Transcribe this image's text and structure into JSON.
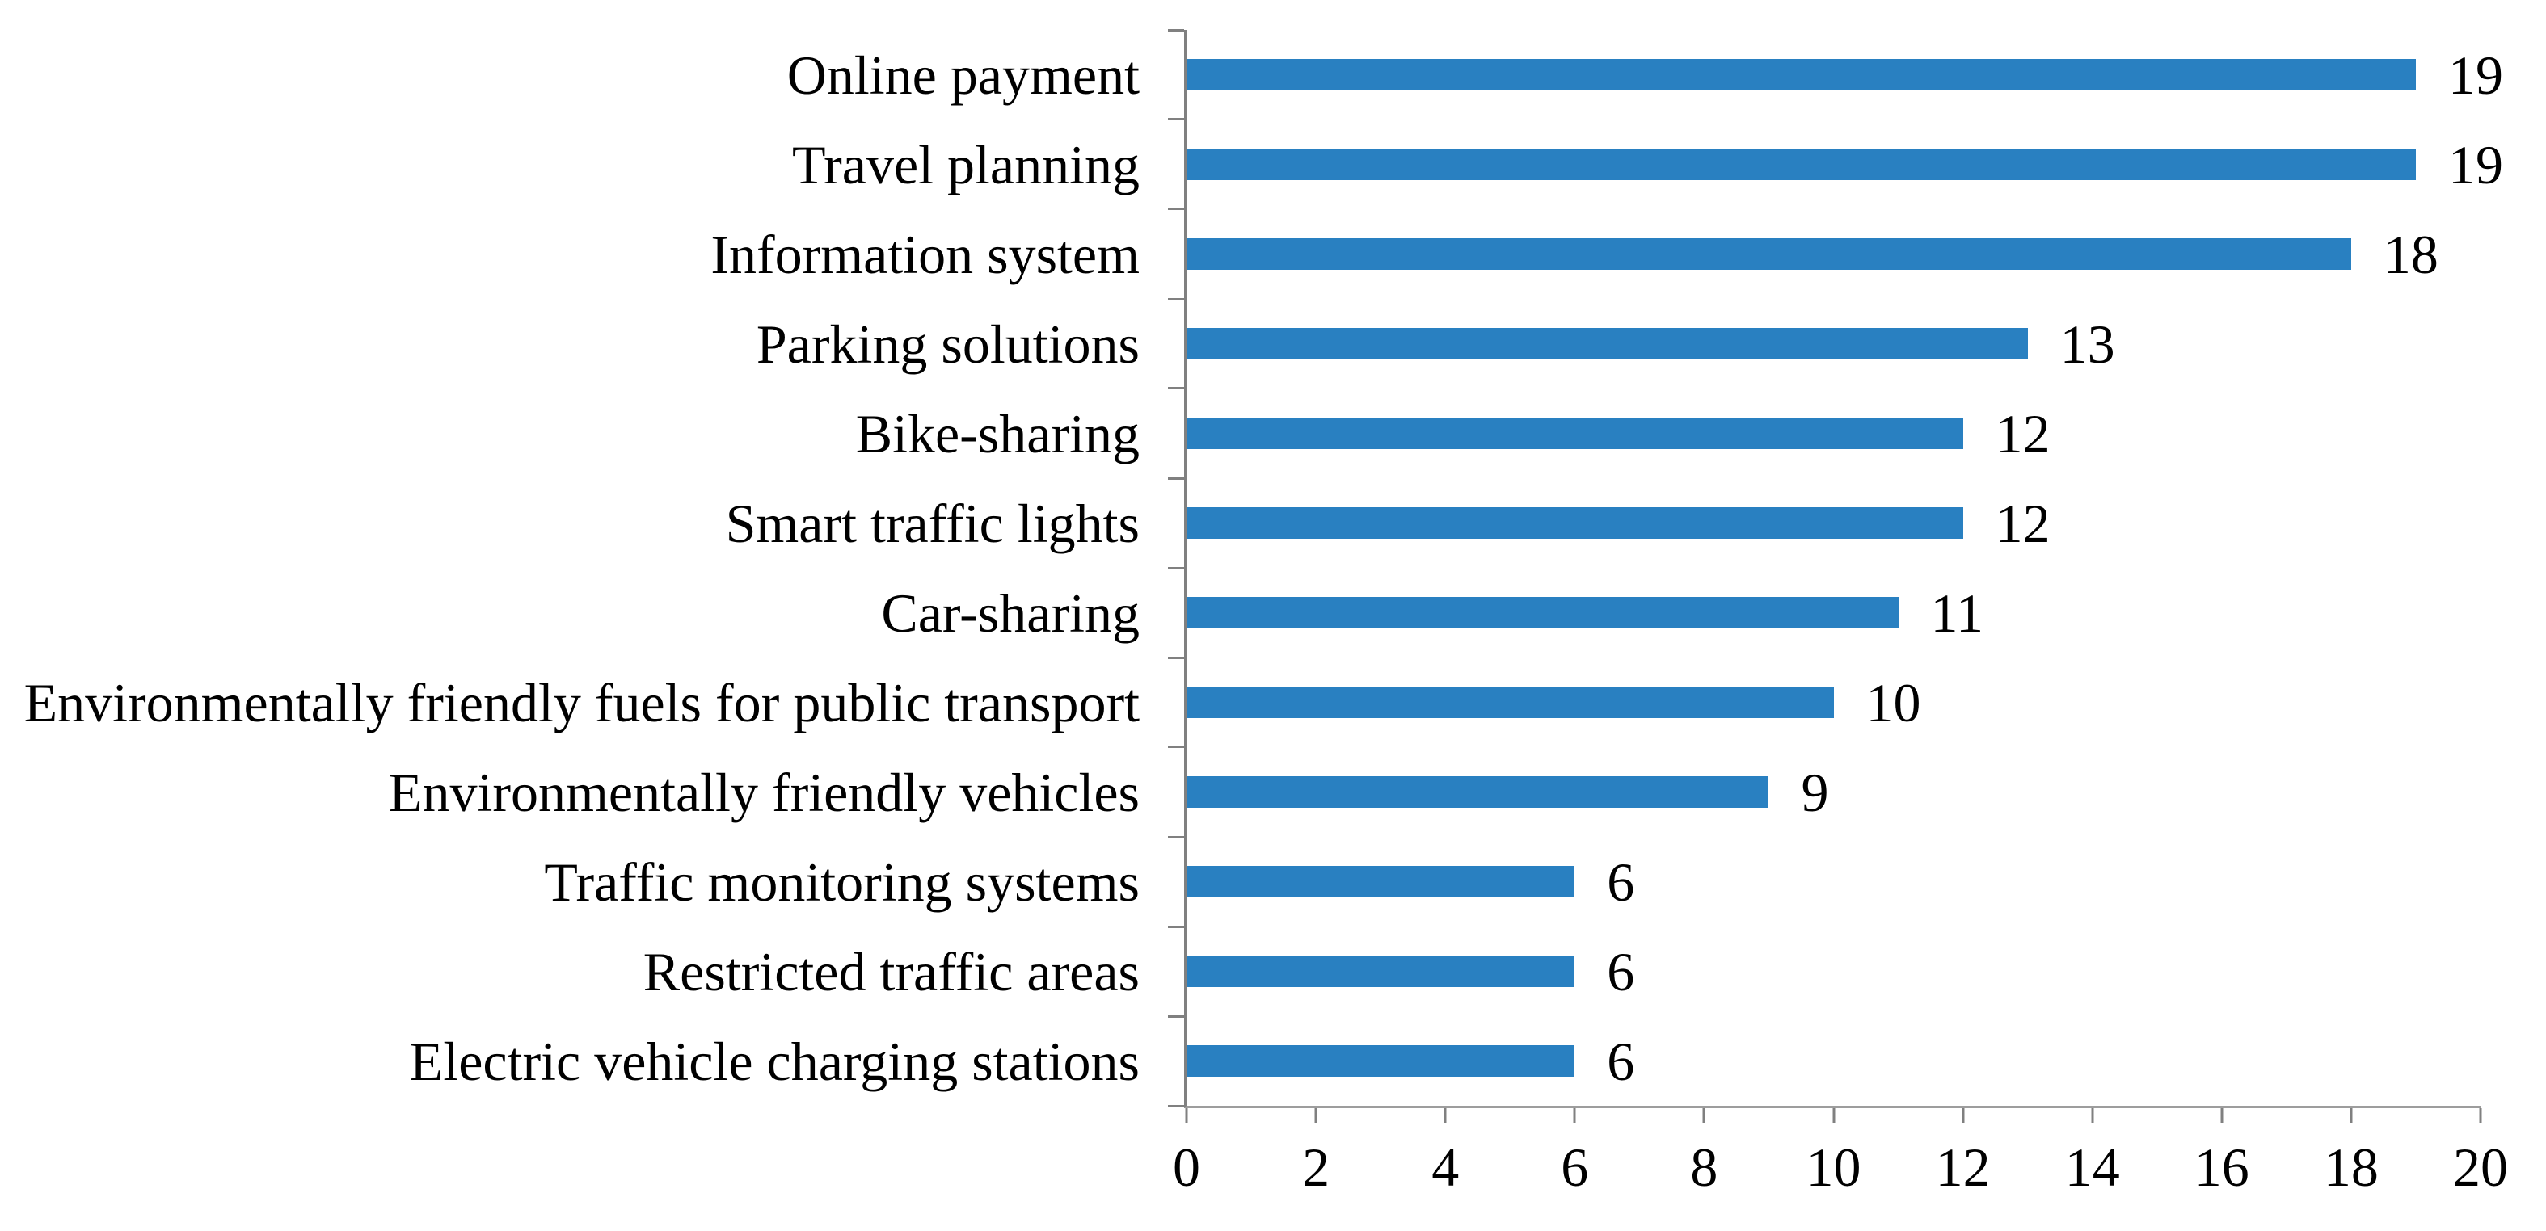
{
  "chart_data": {
    "type": "bar",
    "orientation": "horizontal",
    "title": "",
    "xlabel": "",
    "ylabel": "",
    "categories": [
      "Online payment",
      "Travel planning",
      "Information system",
      "Parking solutions",
      "Bike-sharing",
      "Smart traffic lights",
      "Car-sharing",
      "Environmentally friendly fuels for public transport",
      "Environmentally friendly vehicles",
      "Traffic monitoring systems",
      "Restricted traffic areas",
      "Electric vehicle charging stations"
    ],
    "values": [
      19,
      19,
      18,
      13,
      12,
      12,
      11,
      10,
      9,
      6,
      6,
      6
    ],
    "data_labels": [
      "19",
      "19",
      "18",
      "13",
      "12",
      "12",
      "11",
      "10",
      "9",
      "6",
      "6",
      "6"
    ],
    "xlim": [
      0,
      20
    ],
    "x_ticks": [
      "0",
      "2",
      "4",
      "6",
      "8",
      "10",
      "12",
      "14",
      "16",
      "18",
      "20"
    ],
    "grid": false,
    "legend": false,
    "colors": {
      "bar_fill": "#2980C1",
      "x_axis_line": "#9D9D9D",
      "y_axis_line": "#808080",
      "tick": "#808080",
      "text": "#000000",
      "background": "#FFFFFF"
    }
  }
}
